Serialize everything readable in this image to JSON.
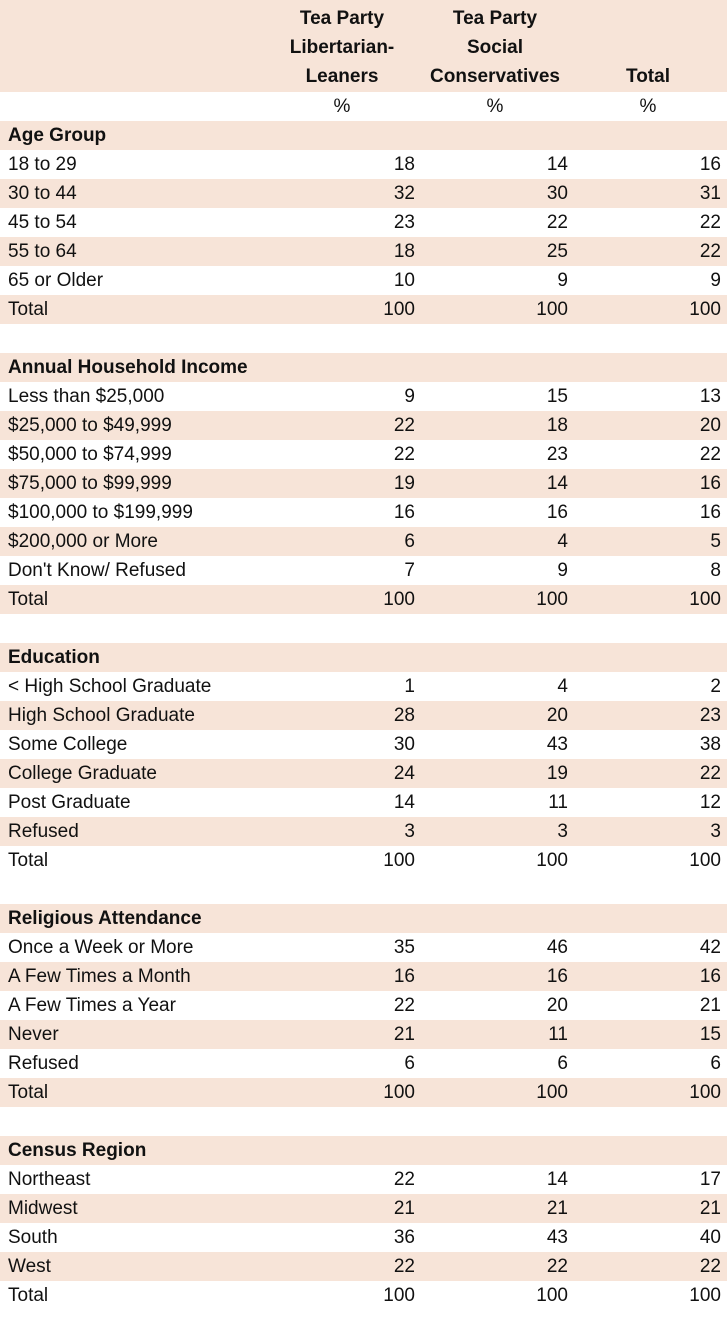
{
  "header": {
    "col1": [
      "Tea Party",
      "Libertarian-",
      "Leaners"
    ],
    "col2": [
      "Tea Party",
      "Social",
      "Conservatives"
    ],
    "col3": "Total",
    "pct": "%"
  },
  "sections": [
    {
      "title": "Age Group",
      "rows": [
        {
          "label": "18 to 29",
          "v": [
            "18",
            "14",
            "16"
          ]
        },
        {
          "label": "30 to 44",
          "v": [
            "32",
            "30",
            "31"
          ]
        },
        {
          "label": "45 to 54",
          "v": [
            "23",
            "22",
            "22"
          ]
        },
        {
          "label": "55 to 64",
          "v": [
            "18",
            "25",
            "22"
          ]
        },
        {
          "label": "65 or Older",
          "v": [
            "10",
            "9",
            "9"
          ]
        },
        {
          "label": "Total",
          "v": [
            "100",
            "100",
            "100"
          ]
        }
      ]
    },
    {
      "title": "Annual Household Income",
      "rows": [
        {
          "label": "Less than $25,000",
          "v": [
            "9",
            "15",
            "13"
          ]
        },
        {
          "label": "$25,000 to $49,999",
          "v": [
            "22",
            "18",
            "20"
          ]
        },
        {
          "label": "$50,000 to $74,999",
          "v": [
            "22",
            "23",
            "22"
          ]
        },
        {
          "label": "$75,000 to $99,999",
          "v": [
            "19",
            "14",
            "16"
          ]
        },
        {
          "label": "$100,000 to $199,999",
          "v": [
            "16",
            "16",
            "16"
          ]
        },
        {
          "label": "$200,000 or More",
          "v": [
            "6",
            "4",
            "5"
          ]
        },
        {
          "label": "Don't Know/ Refused",
          "v": [
            "7",
            "9",
            "8"
          ]
        },
        {
          "label": "Total",
          "v": [
            "100",
            "100",
            "100"
          ]
        }
      ]
    },
    {
      "title": "Education",
      "rows": [
        {
          "label": "< High School Graduate",
          "v": [
            "1",
            "4",
            "2"
          ]
        },
        {
          "label": "High School Graduate",
          "v": [
            "28",
            "20",
            "23"
          ]
        },
        {
          "label": "Some College",
          "v": [
            "30",
            "43",
            "38"
          ]
        },
        {
          "label": "College Graduate",
          "v": [
            "24",
            "19",
            "22"
          ]
        },
        {
          "label": "Post Graduate",
          "v": [
            "14",
            "11",
            "12"
          ]
        },
        {
          "label": "Refused",
          "v": [
            "3",
            "3",
            "3"
          ]
        },
        {
          "label": "Total",
          "v": [
            "100",
            "100",
            "100"
          ]
        }
      ]
    },
    {
      "title": "Religious Attendance",
      "rows": [
        {
          "label": "Once a Week or More",
          "v": [
            "35",
            "46",
            "42"
          ]
        },
        {
          "label": "A Few Times a Month",
          "v": [
            "16",
            "16",
            "16"
          ]
        },
        {
          "label": "A Few Times a Year",
          "v": [
            "22",
            "20",
            "21"
          ]
        },
        {
          "label": "Never",
          "v": [
            "21",
            "11",
            "15"
          ]
        },
        {
          "label": "Refused",
          "v": [
            "6",
            "6",
            "6"
          ]
        },
        {
          "label": "Total",
          "v": [
            "100",
            "100",
            "100"
          ]
        }
      ]
    },
    {
      "title": "Census Region",
      "rows": [
        {
          "label": "Northeast",
          "v": [
            "22",
            "14",
            "17"
          ]
        },
        {
          "label": "Midwest",
          "v": [
            "21",
            "21",
            "21"
          ]
        },
        {
          "label": "South",
          "v": [
            "36",
            "43",
            "40"
          ]
        },
        {
          "label": "West",
          "v": [
            "22",
            "22",
            "22"
          ]
        },
        {
          "label": "Total",
          "v": [
            "100",
            "100",
            "100"
          ]
        }
      ]
    }
  ],
  "colors": {
    "shade": "#f7e4d8",
    "text": "#111111"
  }
}
